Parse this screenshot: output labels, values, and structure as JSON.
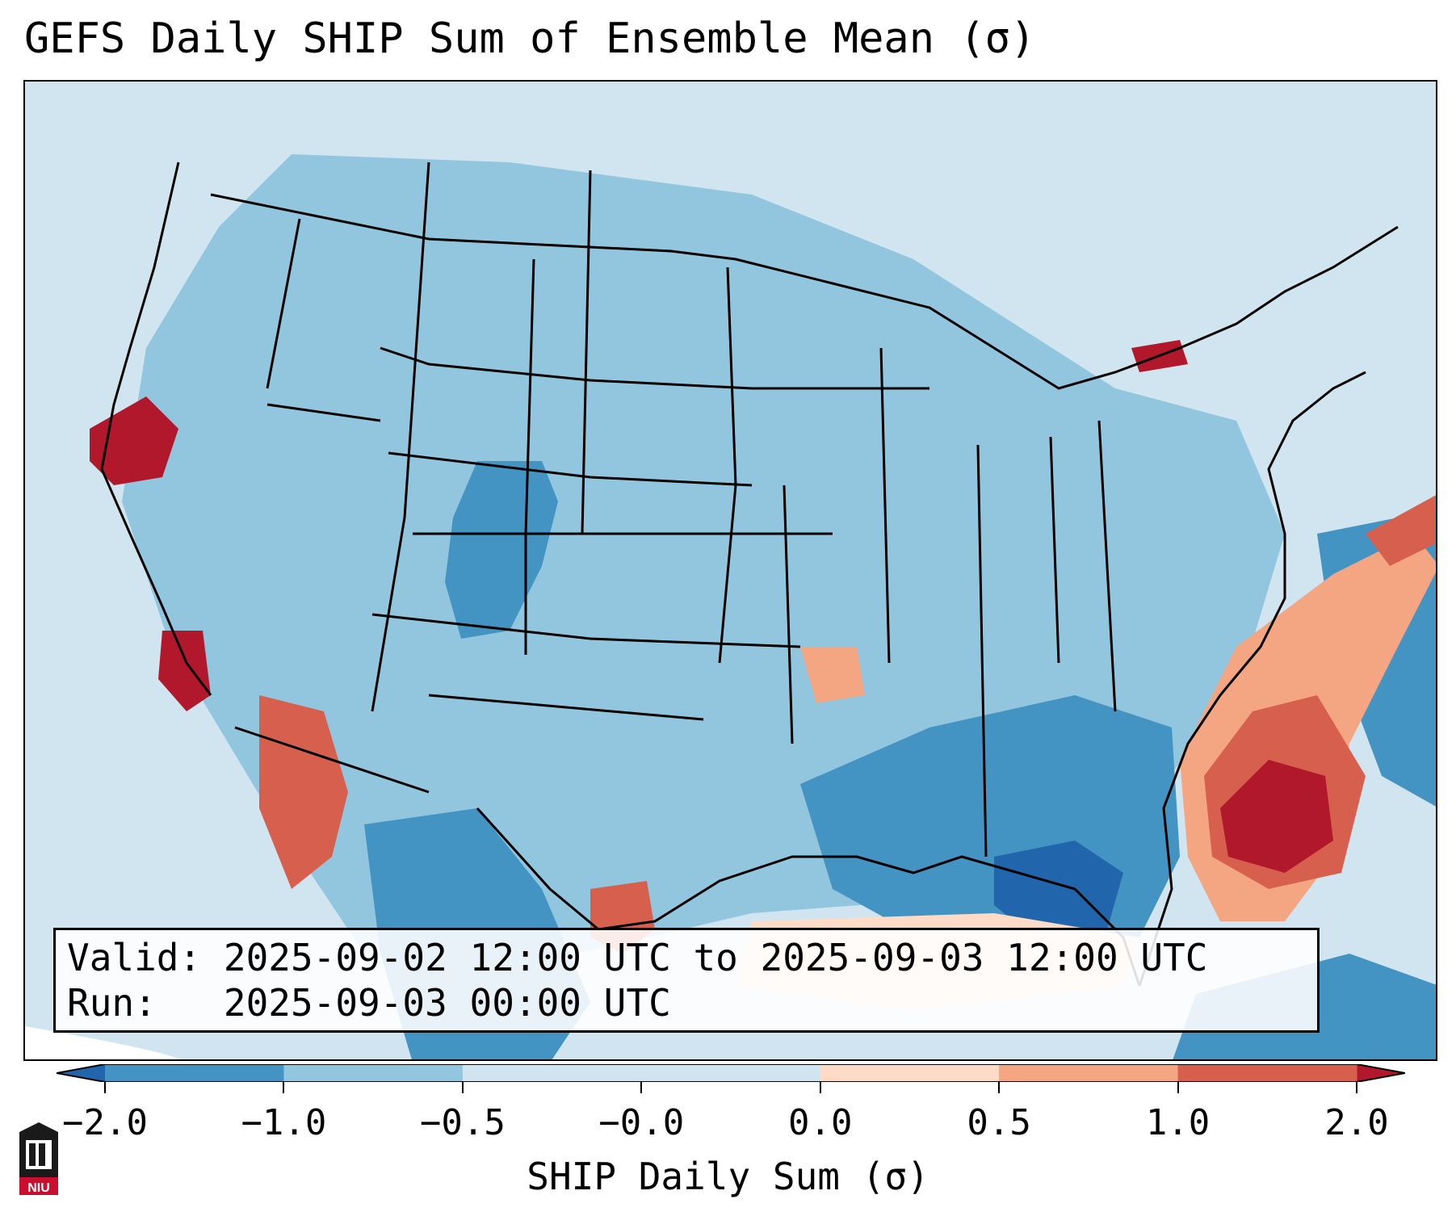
{
  "title": "GEFS Daily SHIP Sum of Ensemble Mean (σ)",
  "info": {
    "valid_label": "Valid:",
    "valid_text": "2025-09-02 12:00 UTC to 2025-09-03 12:00 UTC",
    "run_label": "Run:",
    "run_text": "2025-09-03 00:00 UTC"
  },
  "colorbar": {
    "label": "SHIP Daily Sum (σ)",
    "ticks": [
      "−2.0",
      "−1.0",
      "−0.5",
      "−0.0",
      "0.0",
      "0.5",
      "1.0",
      "2.0"
    ],
    "colors": [
      "#2166ac",
      "#4393c3",
      "#92c5de",
      "#d1e5f0",
      "#fddbc7",
      "#f4a582",
      "#d6604d",
      "#b2182b"
    ]
  },
  "logo": {
    "text": "NIU",
    "icon": "university-logo-icon",
    "color": "#c8102e"
  }
}
